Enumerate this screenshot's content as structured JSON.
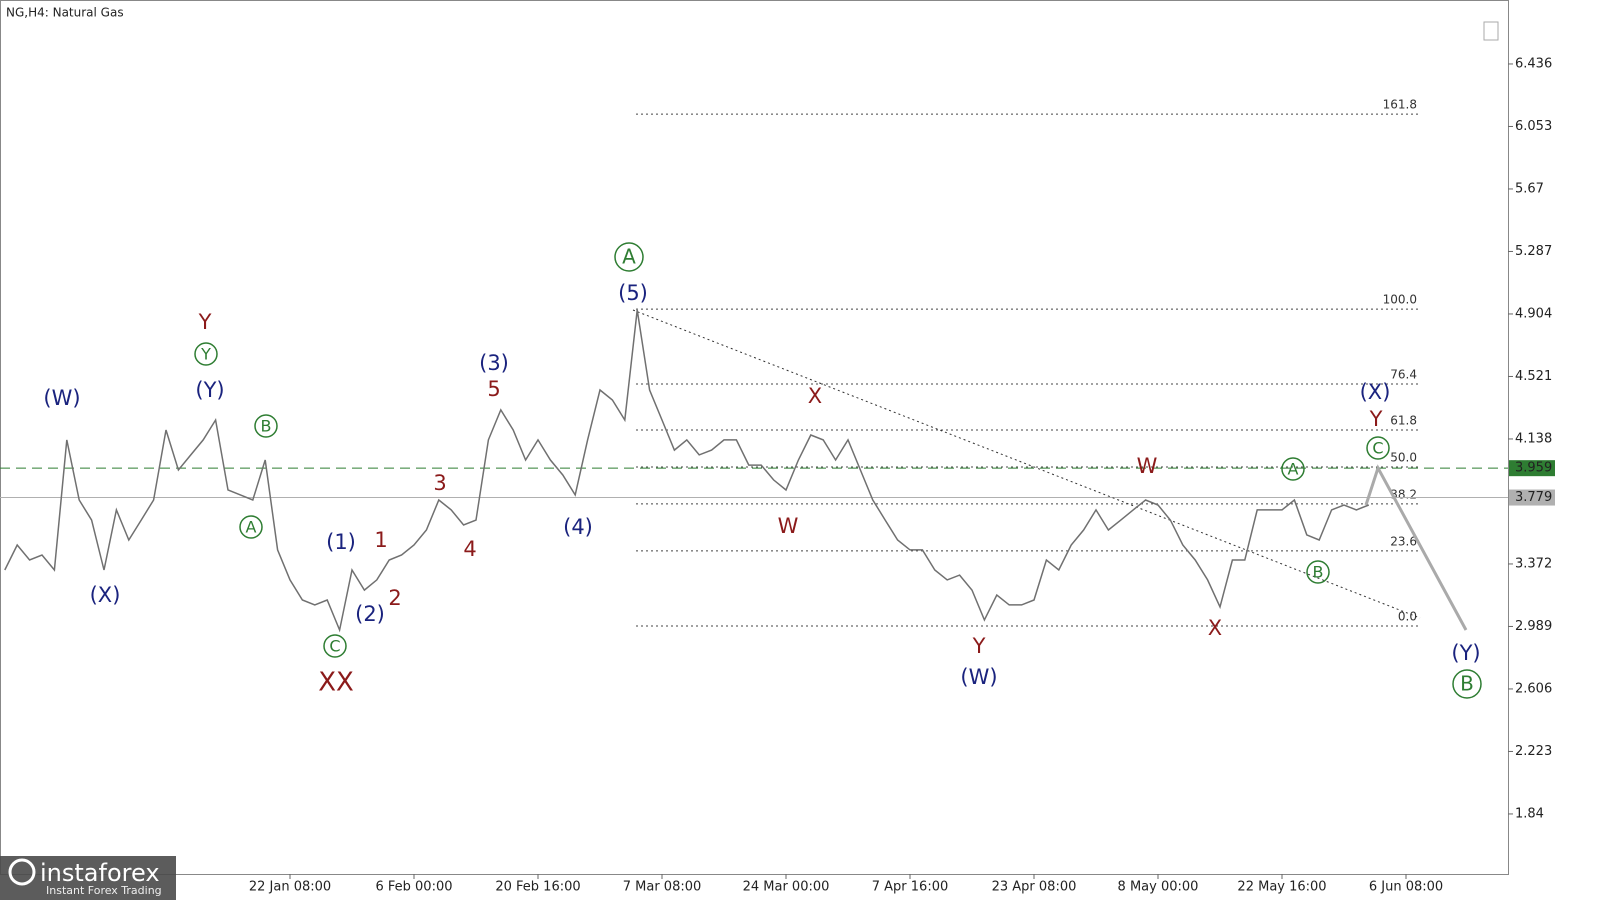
{
  "chart_data": {
    "type": "line",
    "title": "NG,H4:  Natural Gas",
    "categories": [
      null,
      null,
      null,
      null,
      null,
      null,
      null,
      null,
      null,
      null,
      null,
      null,
      null,
      null,
      null,
      null,
      null,
      null,
      null,
      null,
      null,
      null,
      null,
      "22 Jan 08:00",
      null,
      null,
      null,
      null,
      null,
      null,
      null,
      null,
      null,
      "6 Feb 00:00",
      null,
      null,
      null,
      null,
      null,
      null,
      null,
      null,
      null,
      "20 Feb 16:00",
      null,
      null,
      null,
      null,
      null,
      null,
      null,
      null,
      null,
      "7 Mar 08:00",
      null,
      null,
      null,
      null,
      null,
      null,
      null,
      null,
      null,
      "24 Mar 00:00",
      null,
      null,
      null,
      null,
      null,
      null,
      null,
      null,
      null,
      "7 Apr 16:00",
      null,
      null,
      null,
      null,
      null,
      null,
      null,
      null,
      null,
      "23 Apr 08:00",
      null,
      null,
      null,
      null,
      null,
      null,
      null,
      null,
      null,
      "8 May 00:00",
      null,
      null,
      null,
      null,
      null,
      null,
      null,
      null,
      null,
      "22 May 16:00",
      null,
      null,
      null,
      null,
      null,
      null,
      null,
      null,
      null,
      "6 Jun 08:00"
    ],
    "series": [
      {
        "color": "#707070",
        "values": [
          3.335,
          3.488,
          3.396,
          3.427,
          3.335,
          4.132,
          3.764,
          3.641,
          3.335,
          3.703,
          3.519,
          3.641,
          3.764,
          4.193,
          3.948,
          4.04,
          4.132,
          4.254,
          3.825,
          3.795,
          3.764,
          4.009,
          3.458,
          3.274,
          3.151,
          3.121,
          3.151,
          2.967,
          3.335,
          3.212,
          3.274,
          3.396,
          3.427,
          3.488,
          3.58,
          3.764,
          3.703,
          3.611,
          3.641,
          4.132,
          4.316,
          4.193,
          4.009,
          4.132,
          4.009,
          3.917,
          3.795,
          4.132,
          4.438,
          4.377,
          4.254,
          4.928,
          4.438,
          4.254,
          4.07,
          4.132,
          4.04,
          4.07,
          4.132,
          4.132,
          3.978,
          3.978,
          3.887,
          3.825,
          4.009,
          4.162,
          4.132,
          4.009,
          4.132,
          3.948,
          3.764,
          3.641,
          3.519,
          3.458,
          3.458,
          3.335,
          3.274,
          3.304,
          3.212,
          3.029,
          3.182,
          3.121,
          3.121,
          3.151,
          3.396,
          3.335,
          3.488,
          3.58,
          3.703,
          3.58,
          3.641,
          3.703,
          3.764,
          3.733,
          3.641,
          3.488,
          3.396,
          3.274,
          3.109,
          3.396,
          3.396,
          3.703,
          3.703,
          3.703,
          3.764,
          3.55,
          3.519,
          3.703,
          3.733,
          3.703,
          3.733,
          null,
          null,
          null
        ]
      }
    ],
    "ylim": [
      1.472,
      6.828
    ],
    "yticks": [
      6.436,
      6.053,
      5.67,
      5.287,
      4.904,
      4.521,
      4.138,
      3.372,
      2.989,
      2.606,
      2.223,
      1.84
    ],
    "levels": [
      {
        "value": 3.959,
        "color": "#2e7d32"
      },
      {
        "value": 3.779,
        "color": "#b0b0b0"
      }
    ],
    "fib_levels": [
      {
        "label": "161.8",
        "value": 6.129
      },
      {
        "label": "100.0",
        "value": 4.934
      },
      {
        "label": "76.4",
        "value": 4.475
      },
      {
        "label": "61.8",
        "value": 4.193
      },
      {
        "label": "50.0",
        "value": 3.966
      },
      {
        "label": "38.2",
        "value": 3.74
      },
      {
        "label": "23.6",
        "value": 3.452
      },
      {
        "label": "0.0",
        "value": 2.992
      }
    ],
    "annotations": [
      {
        "text": "(W)",
        "color": "#1a237e"
      },
      {
        "text": "(X)",
        "color": "#1a237e"
      },
      {
        "text": "(Y)",
        "color": "#1a237e"
      },
      {
        "text": "Y",
        "color": "#8b1a1a"
      },
      {
        "text": "Y",
        "color": "#2e7d32"
      },
      {
        "text": "B",
        "color": "#2e7d32"
      },
      {
        "text": "A",
        "color": "#2e7d32"
      },
      {
        "text": "C",
        "color": "#2e7d32"
      },
      {
        "text": "XX",
        "color": "#8b1a1a"
      },
      {
        "text": "(1)",
        "color": "#1a237e"
      },
      {
        "text": "1",
        "color": "#8b1a1a"
      },
      {
        "text": "(2)",
        "color": "#1a237e"
      },
      {
        "text": "2",
        "color": "#8b1a1a"
      },
      {
        "text": "3",
        "color": "#8b1a1a"
      },
      {
        "text": "4",
        "color": "#8b1a1a"
      },
      {
        "text": "(3)",
        "color": "#1a237e"
      },
      {
        "text": "5",
        "color": "#8b1a1a"
      },
      {
        "text": "(4)",
        "color": "#1a237e"
      },
      {
        "text": "(5)",
        "color": "#1a237e"
      },
      {
        "text": "A",
        "color": "#2e7d32"
      },
      {
        "text": "X",
        "color": "#8b1a1a"
      },
      {
        "text": "W",
        "color": "#8b1a1a"
      },
      {
        "text": "Y",
        "color": "#8b1a1a"
      },
      {
        "text": "(W)",
        "color": "#1a237e"
      },
      {
        "text": "W",
        "color": "#8b1a1a"
      },
      {
        "text": "X",
        "color": "#8b1a1a"
      },
      {
        "text": "A",
        "color": "#2e7d32"
      },
      {
        "text": "B",
        "color": "#2e7d32"
      },
      {
        "text": "(X)",
        "color": "#1a237e"
      },
      {
        "text": "Y",
        "color": "#8b1a1a"
      },
      {
        "text": "C",
        "color": "#2e7d32"
      },
      {
        "text": "(Y)",
        "color": "#1a237e"
      },
      {
        "text": "B",
        "color": "#2e7d32"
      }
    ],
    "logo": {
      "name": "instaforex",
      "tagline": "Instant Forex Trading"
    }
  }
}
